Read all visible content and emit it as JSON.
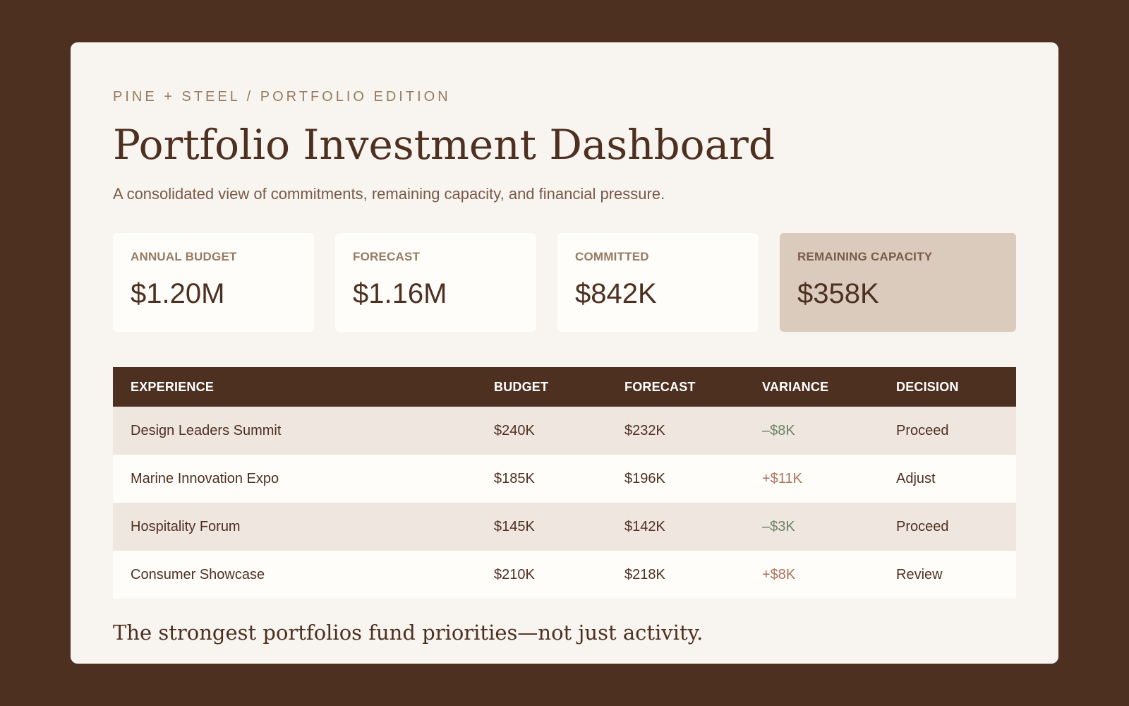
{
  "header": {
    "eyebrow": "PINE + STEEL / PORTFOLIO EDITION",
    "title": "Portfolio Investment Dashboard",
    "subtitle": "A consolidated view of commitments, remaining capacity, and financial pressure."
  },
  "kpis": [
    {
      "label": "ANNUAL BUDGET",
      "value": "$1.20M"
    },
    {
      "label": "FORECAST",
      "value": "$1.16M"
    },
    {
      "label": "COMMITTED",
      "value": "$842K"
    },
    {
      "label": "REMAINING CAPACITY",
      "value": "$358K"
    }
  ],
  "table": {
    "columns": [
      "EXPERIENCE",
      "BUDGET",
      "FORECAST",
      "VARIANCE",
      "DECISION"
    ],
    "rows": [
      {
        "experience": "Design Leaders Summit",
        "budget": "$240K",
        "forecast": "$232K",
        "variance": "–$8K",
        "decision": "Proceed"
      },
      {
        "experience": "Marine Innovation Expo",
        "budget": "$185K",
        "forecast": "$196K",
        "variance": "+$11K",
        "decision": "Adjust"
      },
      {
        "experience": "Hospitality Forum",
        "budget": "$145K",
        "forecast": "$142K",
        "variance": "–$3K",
        "decision": "Proceed"
      },
      {
        "experience": "Consumer Showcase",
        "budget": "$210K",
        "forecast": "$218K",
        "variance": "+$8K",
        "decision": "Review"
      }
    ]
  },
  "footer": {
    "quote": "The strongest portfolios fund priorities—not just activity."
  },
  "colors": {
    "background": "#4e3021",
    "card": "#f8f4ef",
    "accent_dark": "#4e3021",
    "highlight_kpi": "#dbcbbd",
    "variance_negative": "#6c8463",
    "variance_positive": "#a9735c"
  }
}
